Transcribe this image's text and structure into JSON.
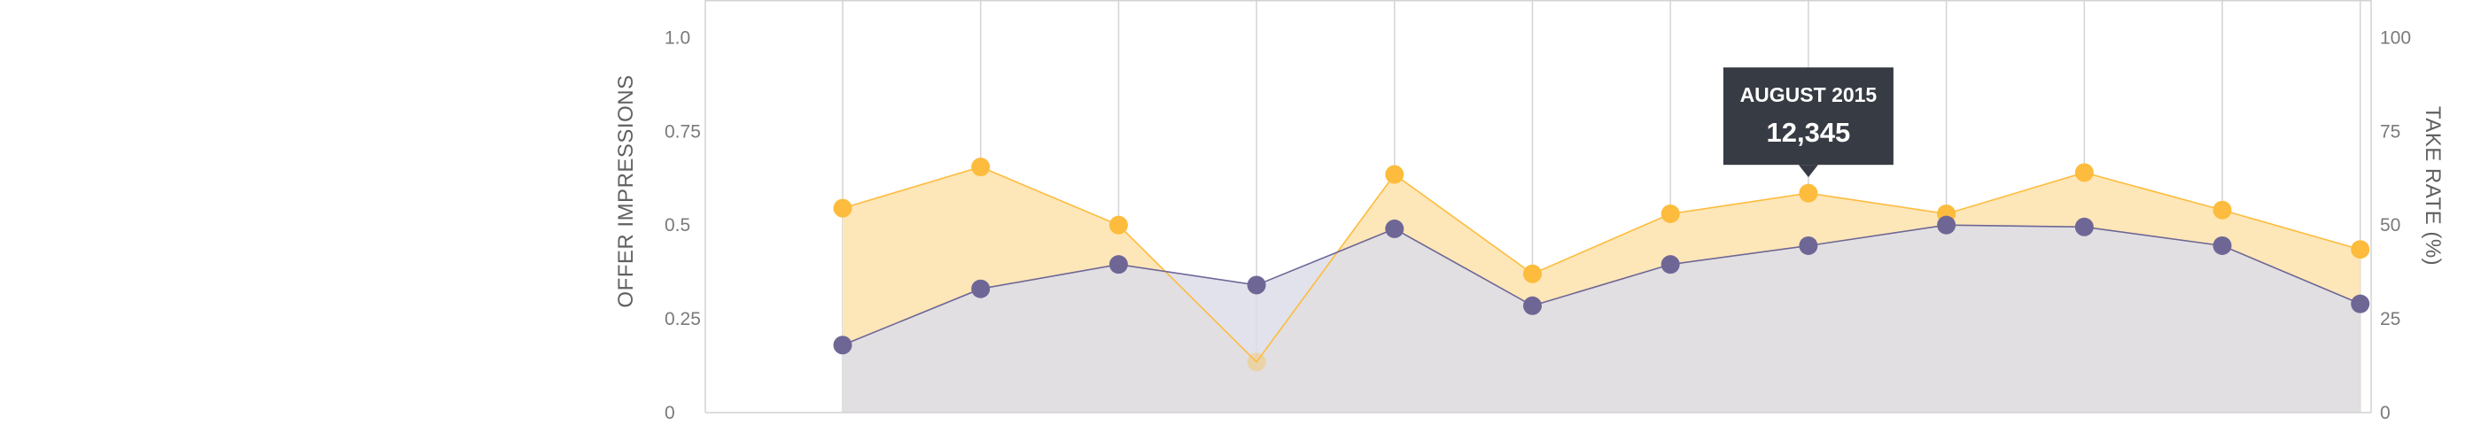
{
  "chart_data": {
    "type": "area",
    "x": [
      "1",
      "2",
      "3",
      "4",
      "5",
      "6",
      "7",
      "8",
      "9",
      "10",
      "11",
      "12"
    ],
    "y_left": {
      "label": "OFFER IMPRESSIONS",
      "lim": [
        0,
        1.1
      ],
      "ticks": [
        0,
        0.25,
        0.5,
        0.75,
        1.0
      ],
      "tick_labels": [
        "0",
        "0.25",
        "0.5",
        "0.75",
        "1.0"
      ]
    },
    "y_right": {
      "label": "TAKE RATE (%)",
      "lim": [
        0,
        110
      ],
      "ticks": [
        0,
        25,
        50,
        75,
        100
      ],
      "tick_labels": [
        "0",
        "25",
        "50",
        "75",
        "100"
      ]
    },
    "series": [
      {
        "axis": "right",
        "color": "#fdbc3d",
        "fill": "#fde6b8",
        "values": [
          54.5,
          65.5,
          50,
          13.5,
          63.5,
          37,
          53,
          58.5,
          53,
          64,
          54,
          43.5
        ]
      },
      {
        "axis": "right",
        "color": "#6e6796",
        "fill": "#dddde9",
        "values": [
          18,
          33,
          39.5,
          34,
          49,
          28.5,
          39.5,
          44.5,
          50,
          49.5,
          44.5,
          29
        ]
      }
    ],
    "vertical_gridlines": true,
    "tooltip": {
      "title": "AUGUST 2015",
      "value": "12,345",
      "point_index": 7
    }
  }
}
